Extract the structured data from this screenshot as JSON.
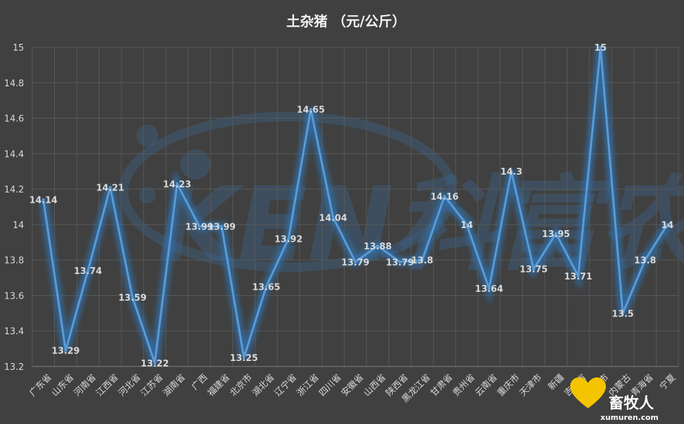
{
  "chart_data": {
    "type": "line",
    "title": "土杂猪  （元/公斤）",
    "categories": [
      "广东省",
      "山东省",
      "河南省",
      "江西省",
      "河北省",
      "江苏省",
      "湖南省",
      "广西",
      "福建省",
      "北京市",
      "湖北省",
      "辽宁省",
      "浙江省",
      "四川省",
      "安徽省",
      "山西省",
      "陕西省",
      "黑龙江省",
      "甘肃省",
      "贵州省",
      "云南省",
      "重庆市",
      "天津市",
      "新疆",
      "吉林省",
      "上海市",
      "内蒙古",
      "青海省",
      "宁夏"
    ],
    "values": [
      14.14,
      13.29,
      13.74,
      14.21,
      13.59,
      13.22,
      14.23,
      13.99,
      13.99,
      13.25,
      13.65,
      13.92,
      14.65,
      14.04,
      13.79,
      13.88,
      13.79,
      13.8,
      14.16,
      14,
      13.64,
      14.3,
      13.75,
      13.95,
      13.71,
      15,
      13.5,
      13.8,
      14
    ],
    "value_labels": [
      "14.14",
      "13.29",
      "13.74",
      "14.21",
      "13.59",
      "13.22",
      "14.23",
      "13.99",
      "13.99",
      "13.25",
      "13.65",
      "13.92",
      "14.65",
      "14.04",
      "13.79",
      "13.88",
      "13.79",
      "13.8",
      "14.16",
      "14",
      "13.64",
      "14.3",
      "13.75",
      "13.95",
      "13.71",
      "15",
      "13.5",
      "13.8",
      "14"
    ],
    "ylim": [
      13.2,
      15
    ],
    "yticks": [
      "13.2",
      "13.4",
      "13.6",
      "13.8",
      "14",
      "14.2",
      "14.4",
      "14.6",
      "14.8",
      "15"
    ],
    "grid": true,
    "line_color": "#5b9bd5",
    "glow_color": "#2e75b6"
  },
  "watermark": {
    "text": "KEN科富农",
    "color": "#3d6a96"
  },
  "logo": {
    "text": "畜牧人",
    "sub": "xumuren.com",
    "color": "#f5c400"
  }
}
